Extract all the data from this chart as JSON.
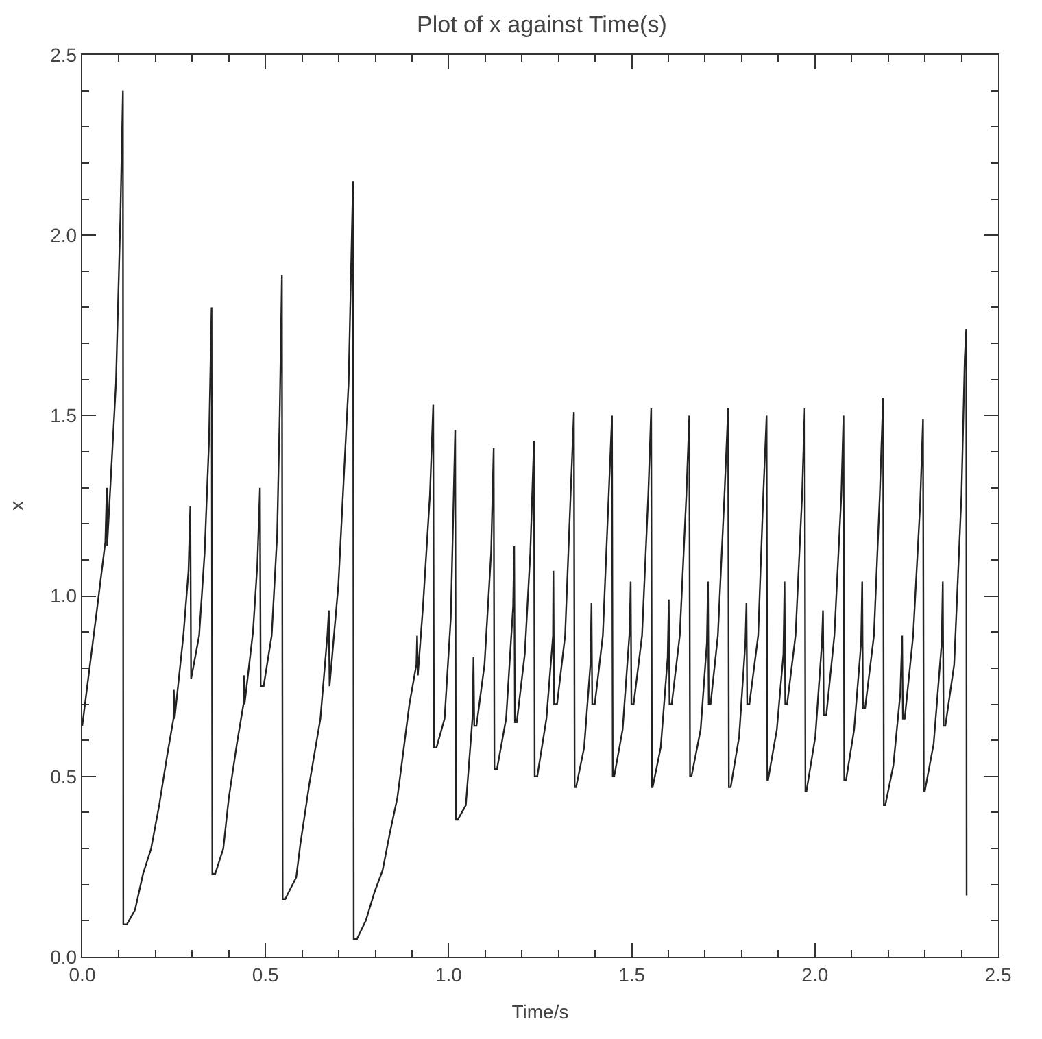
{
  "chart_data": {
    "type": "line",
    "title": "Plot of x against Time(s)",
    "xlabel": "Time/s",
    "ylabel": "x",
    "xlim": [
      0,
      2.5
    ],
    "ylim": [
      0,
      2.5
    ],
    "xticks": [
      {
        "value": 0,
        "label": "0.0"
      },
      {
        "value": 0.1,
        "label": null
      },
      {
        "value": 0.2,
        "label": null
      },
      {
        "value": 0.3,
        "label": null
      },
      {
        "value": 0.4,
        "label": null
      },
      {
        "value": 0.5,
        "label": "0.5"
      },
      {
        "value": 0.6,
        "label": null
      },
      {
        "value": 0.7,
        "label": null
      },
      {
        "value": 0.8,
        "label": null
      },
      {
        "value": 0.9,
        "label": null
      },
      {
        "value": 1,
        "label": "1.0"
      },
      {
        "value": 1.1,
        "label": null
      },
      {
        "value": 1.2,
        "label": null
      },
      {
        "value": 1.3,
        "label": null
      },
      {
        "value": 1.4,
        "label": null
      },
      {
        "value": 1.5,
        "label": "1.5"
      },
      {
        "value": 1.6,
        "label": null
      },
      {
        "value": 1.7,
        "label": null
      },
      {
        "value": 1.8,
        "label": null
      },
      {
        "value": 1.9,
        "label": null
      },
      {
        "value": 2,
        "label": "2.0"
      },
      {
        "value": 2.1,
        "label": null
      },
      {
        "value": 2.2,
        "label": null
      },
      {
        "value": 2.3,
        "label": null
      },
      {
        "value": 2.4,
        "label": null
      },
      {
        "value": 2.5,
        "label": "2.5"
      }
    ],
    "yticks": [
      {
        "value": 0,
        "label": "0.0"
      },
      {
        "value": 0.1,
        "label": null
      },
      {
        "value": 0.2,
        "label": null
      },
      {
        "value": 0.3,
        "label": null
      },
      {
        "value": 0.4,
        "label": null
      },
      {
        "value": 0.5,
        "label": "0.5"
      },
      {
        "value": 0.6,
        "label": null
      },
      {
        "value": 0.7,
        "label": null
      },
      {
        "value": 0.8,
        "label": null
      },
      {
        "value": 0.9,
        "label": null
      },
      {
        "value": 1,
        "label": "1.0"
      },
      {
        "value": 1.1,
        "label": null
      },
      {
        "value": 1.2,
        "label": null
      },
      {
        "value": 1.3,
        "label": null
      },
      {
        "value": 1.4,
        "label": null
      },
      {
        "value": 1.5,
        "label": "1.5"
      },
      {
        "value": 1.6,
        "label": null
      },
      {
        "value": 1.7,
        "label": null
      },
      {
        "value": 1.8,
        "label": null
      },
      {
        "value": 1.9,
        "label": null
      },
      {
        "value": 2,
        "label": "2.0"
      },
      {
        "value": 2.1,
        "label": null
      },
      {
        "value": 2.2,
        "label": null
      },
      {
        "value": 2.3,
        "label": null
      },
      {
        "value": 2.4,
        "label": null
      },
      {
        "value": 2.5,
        "label": "2.5"
      }
    ],
    "grid": false,
    "marker": "none",
    "line_style": "solid",
    "series": [
      {
        "color": "#222222",
        "x": [
          0,
          0.041,
          0.063,
          0.067,
          0.068,
          0.092,
          0.104,
          0.111,
          0.112,
          0.122,
          0.144,
          0.166,
          0.188,
          0.21,
          0.232,
          0.249,
          0.25,
          0.252,
          0.276,
          0.29,
          0.295,
          0.297,
          0.319,
          0.334,
          0.346,
          0.353,
          0.355,
          0.363,
          0.385,
          0.4,
          0.422,
          0.44,
          0.441,
          0.443,
          0.466,
          0.478,
          0.485,
          0.487,
          0.495,
          0.517,
          0.532,
          0.539,
          0.545,
          0.547,
          0.554,
          0.584,
          0.595,
          0.62,
          0.65,
          0.669,
          0.673,
          0.675,
          0.699,
          0.727,
          0.739,
          0.741,
          0.75,
          0.774,
          0.798,
          0.82,
          0.839,
          0.86,
          0.874,
          0.893,
          0.912,
          0.914,
          0.916,
          0.93,
          0.949,
          0.958,
          0.96,
          0.967,
          0.989,
          1.006,
          1.018,
          1.02,
          1.025,
          1.047,
          1.065,
          1.068,
          1.07,
          1.076,
          1.098,
          1.116,
          1.123,
          1.125,
          1.132,
          1.157,
          1.176,
          1.179,
          1.181,
          1.186,
          1.208,
          1.223,
          1.233,
          1.235,
          1.242,
          1.267,
          1.285,
          1.286,
          1.288,
          1.296,
          1.318,
          1.333,
          1.342,
          1.344,
          1.348,
          1.37,
          1.387,
          1.39,
          1.392,
          1.399,
          1.421,
          1.437,
          1.446,
          1.448,
          1.452,
          1.475,
          1.494,
          1.497,
          1.499,
          1.505,
          1.528,
          1.545,
          1.553,
          1.555,
          1.557,
          1.579,
          1.598,
          1.601,
          1.603,
          1.609,
          1.631,
          1.649,
          1.657,
          1.659,
          1.663,
          1.688,
          1.705,
          1.708,
          1.71,
          1.715,
          1.735,
          1.753,
          1.763,
          1.765,
          1.77,
          1.793,
          1.81,
          1.813,
          1.815,
          1.821,
          1.845,
          1.859,
          1.868,
          1.87,
          1.872,
          1.896,
          1.914,
          1.917,
          1.919,
          1.924,
          1.947,
          1.965,
          1.972,
          1.974,
          1.977,
          2.001,
          2.019,
          2.022,
          2.024,
          2.031,
          2.053,
          2.072,
          2.078,
          2.08,
          2.085,
          2.107,
          2.126,
          2.129,
          2.131,
          2.137,
          2.161,
          2.177,
          2.186,
          2.188,
          2.192,
          2.214,
          2.233,
          2.238,
          2.24,
          2.245,
          2.268,
          2.287,
          2.295,
          2.297,
          2.3,
          2.324,
          2.346,
          2.349,
          2.351,
          2.356,
          2.38,
          2.4,
          2.409,
          2.413,
          2.414
        ],
        "values": [
          0.64,
          0.97,
          1.15,
          1.3,
          1.14,
          1.59,
          2.05,
          2.4,
          0.09,
          0.09,
          0.13,
          0.23,
          0.3,
          0.42,
          0.56,
          0.66,
          0.74,
          0.66,
          0.89,
          1.07,
          1.25,
          0.77,
          0.89,
          1.12,
          1.43,
          1.8,
          0.23,
          0.23,
          0.3,
          0.44,
          0.59,
          0.7,
          0.78,
          0.7,
          0.9,
          1.09,
          1.3,
          0.75,
          0.75,
          0.89,
          1.17,
          1.51,
          1.89,
          0.16,
          0.16,
          0.22,
          0.31,
          0.48,
          0.66,
          0.89,
          0.96,
          0.75,
          1.03,
          1.59,
          2.15,
          0.05,
          0.05,
          0.1,
          0.18,
          0.24,
          0.34,
          0.44,
          0.55,
          0.7,
          0.81,
          0.89,
          0.78,
          0.97,
          1.28,
          1.53,
          0.58,
          0.58,
          0.66,
          0.94,
          1.46,
          0.38,
          0.38,
          0.42,
          0.66,
          0.83,
          0.64,
          0.64,
          0.81,
          1.12,
          1.41,
          0.52,
          0.52,
          0.66,
          0.97,
          1.14,
          0.65,
          0.65,
          0.84,
          1.12,
          1.43,
          0.5,
          0.5,
          0.66,
          0.89,
          1.07,
          0.7,
          0.7,
          0.89,
          1.28,
          1.51,
          0.47,
          0.47,
          0.58,
          0.81,
          0.98,
          0.7,
          0.7,
          0.89,
          1.28,
          1.5,
          0.5,
          0.5,
          0.63,
          0.9,
          1.04,
          0.7,
          0.7,
          0.89,
          1.28,
          1.52,
          0.47,
          0.47,
          0.58,
          0.83,
          0.99,
          0.7,
          0.7,
          0.89,
          1.28,
          1.5,
          0.5,
          0.5,
          0.63,
          0.87,
          1.04,
          0.7,
          0.7,
          0.89,
          1.28,
          1.52,
          0.47,
          0.47,
          0.61,
          0.87,
          0.98,
          0.7,
          0.7,
          0.89,
          1.28,
          1.5,
          0.49,
          0.49,
          0.63,
          0.84,
          1.04,
          0.7,
          0.7,
          0.89,
          1.28,
          1.52,
          0.46,
          0.46,
          0.61,
          0.87,
          0.96,
          0.67,
          0.67,
          0.89,
          1.28,
          1.5,
          0.49,
          0.49,
          0.63,
          0.87,
          1.04,
          0.69,
          0.69,
          0.89,
          1.28,
          1.55,
          0.42,
          0.42,
          0.53,
          0.73,
          0.89,
          0.66,
          0.66,
          0.89,
          1.25,
          1.49,
          0.46,
          0.46,
          0.59,
          0.87,
          1.04,
          0.64,
          0.64,
          0.81,
          1.28,
          1.66,
          1.74,
          0.17
        ]
      }
    ]
  }
}
